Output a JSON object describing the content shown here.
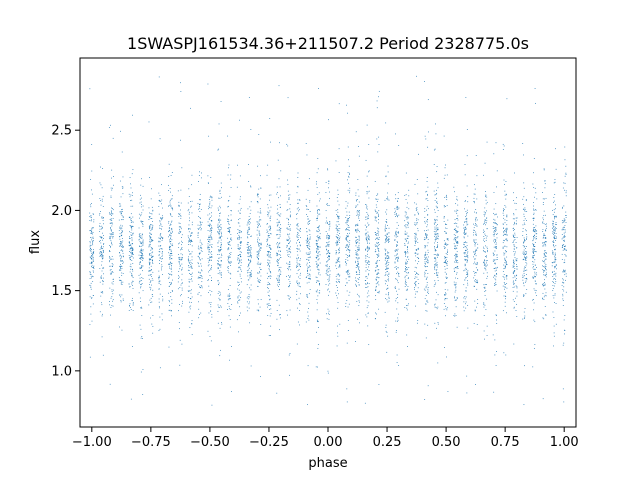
{
  "chart_data": {
    "type": "scatter",
    "title": "1SWASPJ161534.36+211507.2 Period 2328775.0s",
    "xlabel": "phase",
    "ylabel": "flux",
    "xlim": [
      -1.05,
      1.05
    ],
    "ylim": [
      0.65,
      2.95
    ],
    "x_ticks": [
      -1.0,
      -0.75,
      -0.5,
      -0.25,
      0.0,
      0.25,
      0.5,
      0.75,
      1.0
    ],
    "x_tick_labels": [
      "−1.00",
      "−0.75",
      "−0.50",
      "−0.25",
      "0.00",
      "0.25",
      "0.50",
      "0.75",
      "1.00"
    ],
    "y_ticks": [
      1.0,
      1.5,
      2.0,
      2.5
    ],
    "y_tick_labels": [
      "1.0",
      "1.5",
      "2.0",
      "2.5"
    ],
    "grid": false,
    "marker_color": "#1f77b4",
    "series": [
      {
        "x_range": [
          -1.0,
          1.0
        ],
        "columns_per_unit_phase": 24,
        "flux_center": 1.75,
        "flux_core_spread": [
          1.4,
          2.15
        ],
        "flux_outlier_range": [
          0.75,
          2.85
        ]
      }
    ]
  }
}
